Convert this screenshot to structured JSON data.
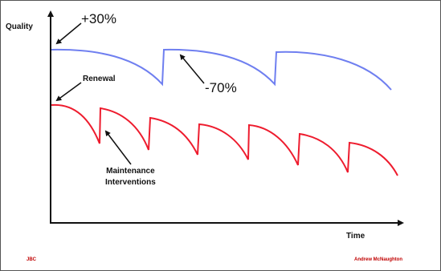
{
  "labels": {
    "y_axis": "Quality",
    "x_axis": "Time",
    "upgrade": "+30%",
    "drop": "-70%",
    "renewal": "Renewal",
    "maintenance_line1": "Maintenance",
    "maintenance_line2": "Interventions"
  },
  "footer": {
    "logo_text": "JBC",
    "author": "Andrew McNaughton"
  },
  "colors": {
    "upper_curve": "#6f7ff0",
    "lower_curve": "#ee1c2e",
    "axis": "#111111",
    "footer": "#c00000"
  }
}
